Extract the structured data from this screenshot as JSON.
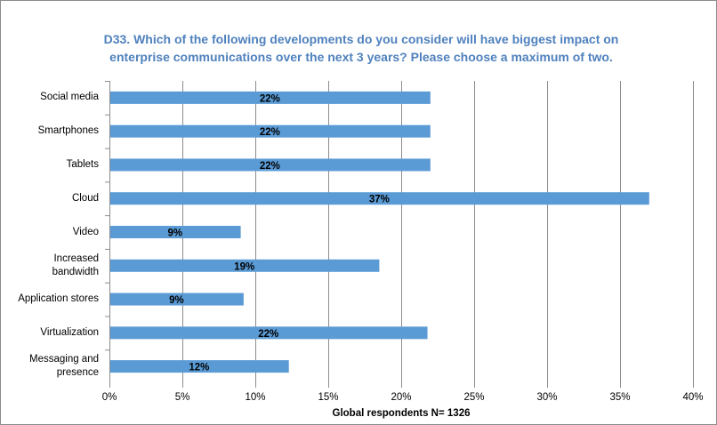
{
  "chart_data": {
    "type": "bar",
    "orientation": "horizontal",
    "title_lines": [
      "D33.  Which of the following developments do you consider will have biggest impact on",
      "enterprise communications over the next 3 years?  Please choose a maximum of two."
    ],
    "categories": [
      "Social media",
      "Smartphones",
      "Tablets",
      "Cloud",
      "Video",
      "Increased bandwidth",
      "Application stores",
      "Virtualization",
      "Messaging and presence"
    ],
    "category_label_lines": [
      [
        "Social media"
      ],
      [
        "Smartphones"
      ],
      [
        "Tablets"
      ],
      [
        "Cloud"
      ],
      [
        "Video"
      ],
      [
        "Increased",
        "bandwidth"
      ],
      [
        "Application stores"
      ],
      [
        "Virtualization"
      ],
      [
        "Messaging and",
        "presence"
      ]
    ],
    "values": [
      22,
      22,
      22,
      37,
      9,
      18.5,
      9.2,
      21.8,
      12.3
    ],
    "data_labels": [
      "22%",
      "22%",
      "22%",
      "37%",
      "9%",
      "19%",
      "9%",
      "22%",
      "12%"
    ],
    "xlim": [
      0,
      40
    ],
    "xticks": [
      0,
      5,
      10,
      15,
      20,
      25,
      30,
      35,
      40
    ],
    "xtick_labels": [
      "0%",
      "5%",
      "10%",
      "15%",
      "20%",
      "25%",
      "30%",
      "35%",
      "40%"
    ],
    "xlabel": "Global  respondents N= 1326",
    "ylabel": "",
    "grid": true,
    "colors": {
      "bar": "#5b9bd5",
      "title": "#4f81bd",
      "grid": "#8c8c8c"
    }
  }
}
